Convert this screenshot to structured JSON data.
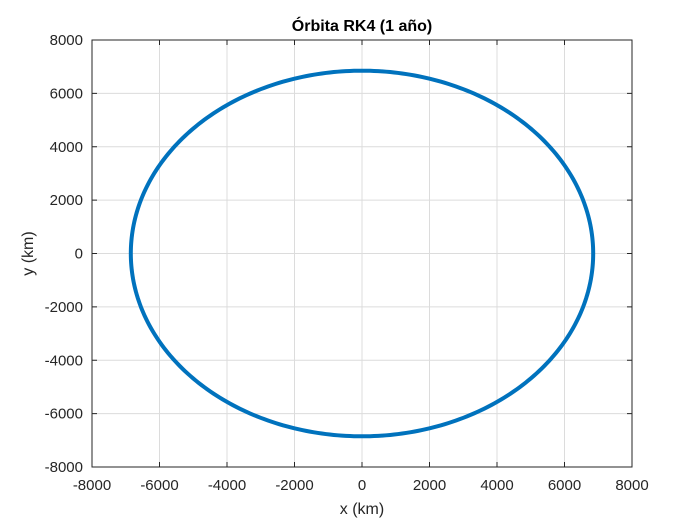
{
  "chart_data": {
    "type": "line",
    "title": "Órbita RK4 (1 año)",
    "xlabel": "x (km)",
    "ylabel": "y (km)",
    "xlim": [
      -8000,
      8000
    ],
    "ylim": [
      -8000,
      8000
    ],
    "xticks": [
      -8000,
      -6000,
      -4000,
      -2000,
      0,
      2000,
      4000,
      6000,
      8000
    ],
    "yticks": [
      -8000,
      -6000,
      -4000,
      -2000,
      0,
      2000,
      4000,
      6000,
      8000
    ],
    "grid": true,
    "series": [
      {
        "name": "",
        "shape": "circle",
        "center": [
          0,
          0
        ],
        "radius_x": 6850,
        "radius_y": 6850,
        "color": "#0072BD"
      }
    ]
  },
  "colors": {
    "line": "#0072BD",
    "grid": "#dcdcdc",
    "axis": "#262626"
  }
}
